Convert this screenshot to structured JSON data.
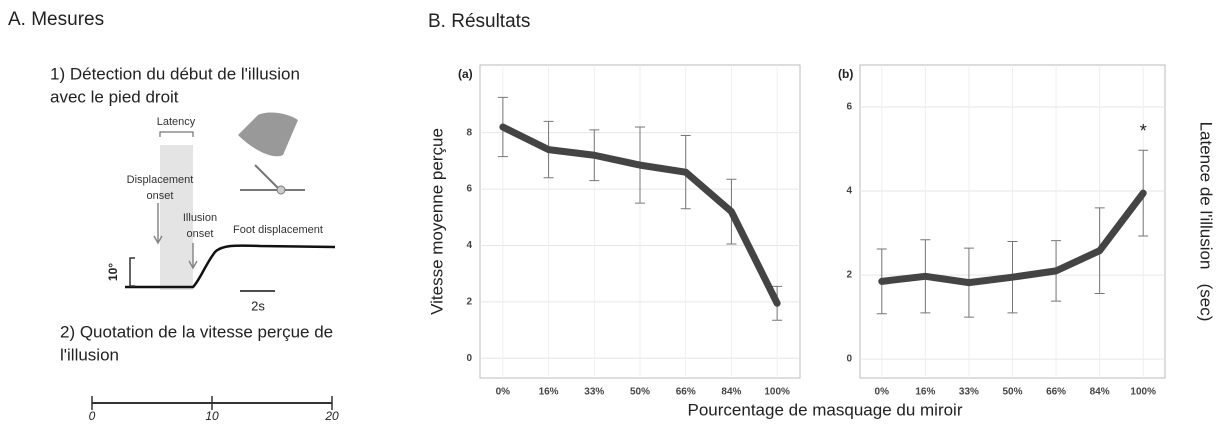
{
  "panel_a": {
    "title": "A. Mesures",
    "step1": [
      "1) Détection du début de l'illusion",
      "avec le pied droit"
    ],
    "diagram": {
      "latency": "Latency",
      "displacement_onset": [
        "Displacement",
        "onset"
      ],
      "illusion_onset": [
        "Illusion",
        "onset"
      ],
      "foot_displacement": "Foot displacement",
      "angle": "10°",
      "time": "2s"
    },
    "step2": [
      "2) Quotation de la vitesse perçue de",
      "l'illusion"
    ],
    "scale": {
      "ticks": [
        0,
        10,
        20
      ]
    }
  },
  "panel_b_title": "B. Résultats",
  "x_label": "Pourcentage de masquage du miroir",
  "chart_data": [
    {
      "type": "line",
      "title": "(a)",
      "y_label": "Vitesse moyenne perçue",
      "categories": [
        "0%",
        "16%",
        "33%",
        "50%",
        "66%",
        "84%",
        "100%"
      ],
      "values": [
        8.2,
        7.4,
        7.2,
        6.85,
        6.6,
        5.2,
        1.95
      ],
      "errors": [
        1.05,
        1.0,
        0.9,
        1.35,
        1.3,
        1.15,
        0.6
      ],
      "color": "#444444",
      "ylim": [
        -0.7,
        10.4
      ],
      "yticks": [
        0,
        2,
        4,
        6,
        8
      ],
      "grid": true
    },
    {
      "type": "line",
      "title": "(b)",
      "y_label": "Latence de l'illusion   (sec)",
      "categories": [
        "0%",
        "16%",
        "33%",
        "50%",
        "66%",
        "84%",
        "100%"
      ],
      "values": [
        1.85,
        1.97,
        1.82,
        1.95,
        2.1,
        2.58,
        3.95
      ],
      "errors": [
        0.77,
        0.87,
        0.82,
        0.85,
        0.72,
        1.02,
        1.02
      ],
      "annotation": "*",
      "color": "#444444",
      "ylim": [
        -0.45,
        7.0
      ],
      "yticks": [
        0,
        2,
        4,
        6
      ],
      "grid": true
    }
  ]
}
